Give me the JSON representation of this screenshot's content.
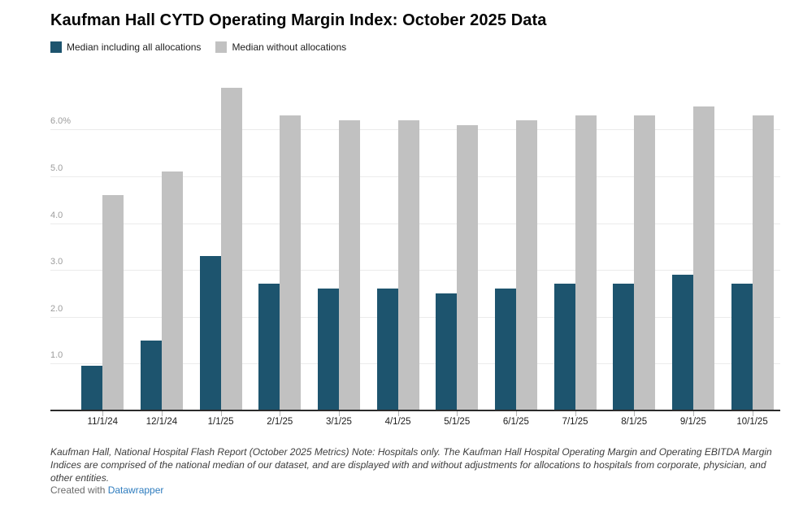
{
  "title": "Kaufman Hall CYTD Operating Margin Index: October 2025 Data",
  "legend": [
    {
      "label": "Median including all allocations",
      "color": "#1d546e"
    },
    {
      "label": "Median without allocations",
      "color": "#c1c1c1"
    }
  ],
  "chart_data": {
    "type": "bar",
    "title": "Kaufman Hall CYTD Operating Margin Index: October 2025 Data",
    "categories": [
      "11/1/24",
      "12/1/24",
      "1/1/25",
      "2/1/25",
      "3/1/25",
      "4/1/25",
      "5/1/25",
      "6/1/25",
      "7/1/25",
      "8/1/25",
      "9/1/25",
      "10/1/25"
    ],
    "series": [
      {
        "name": "Median including all allocations",
        "color": "#1d546e",
        "values": [
          0.95,
          1.5,
          3.3,
          2.7,
          2.6,
          2.6,
          2.5,
          2.6,
          2.7,
          2.7,
          2.9,
          2.7
        ]
      },
      {
        "name": "Median without allocations",
        "color": "#c1c1c1",
        "values": [
          4.6,
          5.1,
          6.9,
          6.3,
          6.2,
          6.2,
          6.1,
          6.2,
          6.3,
          6.3,
          6.5,
          6.3
        ]
      }
    ],
    "xlabel": "",
    "ylabel": "",
    "y_ticks": [
      1,
      2,
      3,
      4,
      5,
      6
    ],
    "y_tick_labels": [
      "1.0",
      "2.0",
      "3.0",
      "4.0",
      "5.0",
      "6.0%"
    ],
    "ylim": [
      0,
      7.1
    ],
    "grid": true,
    "legend_position": "top",
    "unit": "percent"
  },
  "footer": {
    "note": "Kaufman Hall, National Hospital Flash Report (October 2025 Metrics) Note: Hospitals only. The Kaufman Hall Hospital Operating Margin and Operating EBITDA Margin Indices are comprised of the national median of our dataset, and are displayed with and without adjustments for allocations to hospitals from corporate, physician, and other entities.",
    "attribution_prefix": "Created with ",
    "attribution_link": "Datawrapper"
  }
}
